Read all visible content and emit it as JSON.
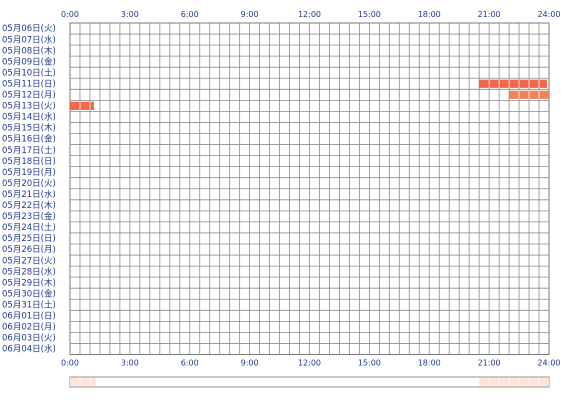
{
  "chart_data": {
    "type": "heatmap",
    "title": "",
    "xlabel": "",
    "ylabel": "",
    "x_range_hours": [
      0,
      24
    ],
    "x_ticks": [
      "0:00",
      "3:00",
      "6:00",
      "9:00",
      "12:00",
      "15:00",
      "18:00",
      "21:00",
      "24:00"
    ],
    "row_labels": [
      "05月06日(火)",
      "05月07日(水)",
      "05月08日(木)",
      "05月09日(金)",
      "05月10日(土)",
      "05月11日(日)",
      "05月12日(月)",
      "05月13日(火)",
      "05月14日(水)",
      "05月15日(木)",
      "05月16日(金)",
      "05月17日(土)",
      "05月18日(日)",
      "05月19日(月)",
      "05月20日(火)",
      "05月21日(水)",
      "05月22日(木)",
      "05月23日(金)",
      "05月24日(土)",
      "05月25日(日)",
      "05月26日(月)",
      "05月27日(火)",
      "05月28日(水)",
      "05月29日(木)",
      "05月30日(金)",
      "05月31日(土)",
      "06月01日(日)",
      "06月02日(月)",
      "06月03日(火)",
      "06月04日(水)"
    ],
    "intervals": [
      {
        "row": 5,
        "start": 20.5,
        "end": 23.9
      },
      {
        "row": 6,
        "start": 22.0,
        "end": 24.0
      },
      {
        "row": 7,
        "start": 0.0,
        "end": 1.2
      }
    ],
    "summary_intervals": [
      {
        "start": 0.0,
        "end": 1.3
      },
      {
        "start": 20.5,
        "end": 24.0
      }
    ],
    "colors": {
      "grid": "#8c8c8c",
      "border": "#7b7b7b",
      "label": "#1f3a93",
      "bar_main": "#f4674b",
      "bar_alt": "#f1835c",
      "summary_fill": "#fde5da",
      "summary_bg": "#ffffff"
    }
  }
}
